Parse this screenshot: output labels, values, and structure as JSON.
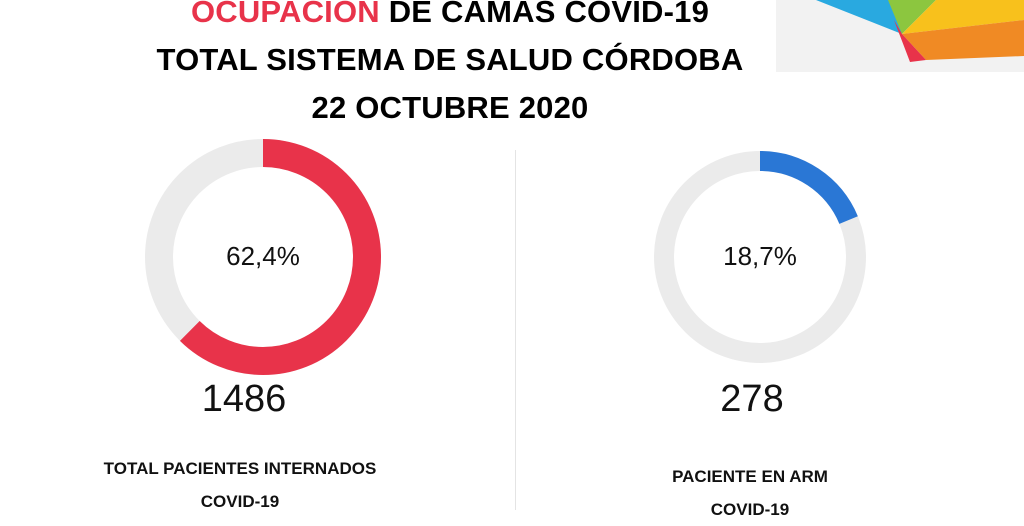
{
  "header": {
    "title_highlight": "OCUPACIÓN",
    "title_rest": " DE CAMAS COVID-19",
    "line2": "TOTAL SISTEMA DE SALUD CÓRDOBA",
    "line3": "22 OCTUBRE 2020"
  },
  "colors": {
    "highlight": "#e8334a",
    "track": "#ebebeb",
    "left_arc": "#e8334a",
    "right_arc": "#2a77d5"
  },
  "chart_data": [
    {
      "type": "pie",
      "variant": "donut",
      "value": 62.4,
      "value_label": "62,4%",
      "count": "1486",
      "label_line1": "TOTAL PACIENTES INTERNADOS",
      "label_line2": "COVID-19",
      "color": "#e8334a"
    },
    {
      "type": "pie",
      "variant": "donut",
      "value": 18.7,
      "value_label": "18,7%",
      "count": "278",
      "label_line1": "PACIENTE EN ARM",
      "label_line2": "COVID-19",
      "color": "#2a77d5"
    }
  ]
}
